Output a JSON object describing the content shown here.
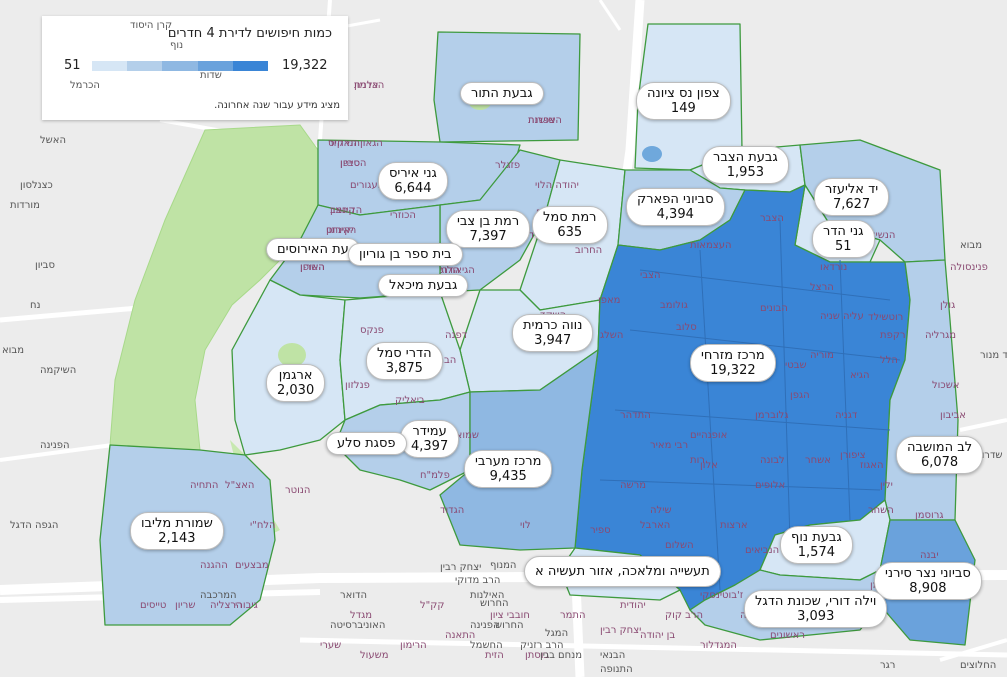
{
  "legend": {
    "title": "כמות חיפושים לדירת 4 חדרים",
    "min": "51",
    "max": "19,322",
    "note": "מציג מידע עבור שנה אחרונה.",
    "colors": [
      "#d6e6f5",
      "#b4cfea",
      "#8fb8e2",
      "#6aa2dc",
      "#3a85d6"
    ]
  },
  "neighborhoods": [
    {
      "name": "גבעת התור",
      "value": ""
    },
    {
      "name": "צפון נס ציונה",
      "value": "149"
    },
    {
      "name": "גני איריס",
      "value": "6,644"
    },
    {
      "name": "רמת בן צבי",
      "value": "7,397"
    },
    {
      "name": "רמת סמל",
      "value": "635"
    },
    {
      "name": "גבעת הצבר",
      "value": "1,953"
    },
    {
      "name": "סביוני הפארק",
      "value": "4,394"
    },
    {
      "name": "יד אליעזר",
      "value": "7,627"
    },
    {
      "name": "גני הדר",
      "value": "51"
    },
    {
      "name": "עת האירוסים",
      "value": ""
    },
    {
      "name": "בית ספר בן גוריון",
      "value": ""
    },
    {
      "name": "גבעת מיכאל",
      "value": ""
    },
    {
      "name": "נווה כרמית",
      "value": "3,947"
    },
    {
      "name": "מרכז מזרחי",
      "value": "19,322"
    },
    {
      "name": "ארגמן",
      "value": "2,030"
    },
    {
      "name": "הדרי סמל",
      "value": "3,875"
    },
    {
      "name": "עמידר",
      "value": "4,397"
    },
    {
      "name": "פסגת סלע",
      "value": ""
    },
    {
      "name": "מרכז מערבי",
      "value": "9,435"
    },
    {
      "name": "לב המושבה",
      "value": "6,078"
    },
    {
      "name": "שמורת מליבו",
      "value": "2,143"
    },
    {
      "name": "גבעת נוף",
      "value": "1,574"
    },
    {
      "name": "תעשייה ומלאכה, אזור תעשיה א",
      "value": ""
    },
    {
      "name": "סביוני נצר סירני",
      "value": "8,908"
    },
    {
      "name": "וילה דורי, שכונת הדגל",
      "value": "3,093"
    }
  ],
  "streets": [
    "צפרות",
    "אדמון",
    "הגאון האחזר",
    "סביון",
    "הקינמון",
    "יקינתון",
    "הדרי",
    "השרון",
    "שקמה",
    "השקד",
    "ששת הימים",
    "העצמאות",
    "הצבר",
    "הצבי",
    "גולומב",
    "סלוב",
    "המעיין",
    "הרצל",
    "הבונים",
    "עליה שניה",
    "רוטשילד",
    "מוריה",
    "הגפן",
    "הלל",
    "נורדאו",
    "הגיא",
    "הנשיאים",
    "גולן",
    "פנינסולה",
    "מגרליה",
    "אשכול",
    "אביבון",
    "העגורים",
    "פזגלר",
    "החרוב",
    "פנקס",
    "השלג",
    "פנלזון",
    "הבריגדה",
    "ביאליק",
    "דפנה",
    "ורדים",
    "יהודה הלוי",
    "מאפו",
    "התדהר",
    "רבי מאיר",
    "אופנהיים",
    "גלוברמן",
    "רות",
    "דגניה",
    "שבטי",
    "האגוז",
    "השחר",
    "מרשה",
    "שילה",
    "אלון",
    "לבונה",
    "אשחר",
    "ציפורן",
    "רקפת",
    "אלופים",
    "ארצות",
    "השלום",
    "הארבל",
    "ספיר",
    "מונטיפיורי",
    "ז'בוטינסקי",
    "הנביאים",
    "ילין",
    "גרוסמן",
    "יבנה",
    "פרישמן",
    "שמואל",
    "שרת",
    "לוי",
    "פלמ\"ח",
    "הגדוד",
    "הנוטר",
    "הלח\"י",
    "האצ\"ל",
    "התחיה",
    "מבצע",
    "ההגנה",
    "טייסים",
    "שריון",
    "הרצליה",
    "גיבורי",
    "מבצעים",
    "ההדסים",
    "הכוזרי",
    "יהודית",
    "בן יהודה",
    "המגדלור",
    "תנובה",
    "ראשונים",
    "קק\"ל",
    "חובבי ציון",
    "בוסתן",
    "הזית",
    "התאנה",
    "הרימון",
    "התמר",
    "יצחק רבין",
    "הרב קוק",
    "מגדל",
    "משעול",
    "שערי",
    "השושנה",
    "הכלנית",
    "הנרקיס",
    "הסייפן",
    "החצב",
    "האירוס",
    "הגיאולוג",
    "האופן"
  ],
  "roads": [
    "יצחק רבין",
    "האוניברסיטה",
    "האילנות",
    "החרוש",
    "המנוף",
    "הפנינה",
    "המגל",
    "החשמל",
    "הדואר",
    "המרכבה",
    "החרוש",
    "מנחם בגין",
    "הרב רזניק",
    "הרב מדוקי",
    "המסגר",
    "הבנאי",
    "התנופה",
    "הגפה הדגל",
    "הפנינה",
    "השיקמה",
    "מבוא",
    "נח",
    "סביון",
    "מורדות",
    "כצנלסון",
    "האשל",
    "הכרמל",
    "קרן היסוד",
    "נוף",
    "שדות",
    "מבוא",
    "אהוד מנור",
    "שדרות",
    "החלוצים",
    "רגר"
  ]
}
